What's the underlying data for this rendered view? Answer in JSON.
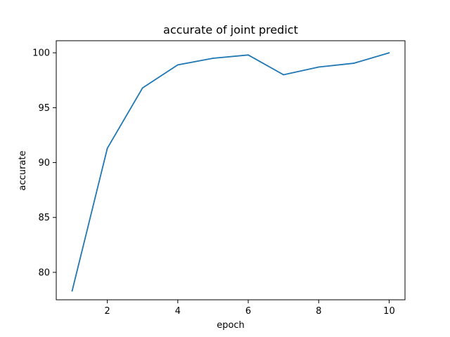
{
  "chart_data": {
    "type": "line",
    "title": "accurate of joint predict",
    "xlabel": "epoch",
    "ylabel": "accurate",
    "xlim": [
      0.55,
      10.45
    ],
    "ylim": [
      77.5,
      101.1
    ],
    "xticks": [
      2,
      4,
      6,
      8,
      10
    ],
    "yticks": [
      80,
      85,
      90,
      95,
      100
    ],
    "grid": false,
    "series": [
      {
        "color": "#1f77b4",
        "x": [
          1,
          2,
          3,
          4,
          5,
          6,
          7,
          8,
          9,
          10
        ],
        "y": [
          78.3,
          91.3,
          96.8,
          98.9,
          99.5,
          99.8,
          98.0,
          98.7,
          99.05,
          100.0
        ]
      }
    ]
  }
}
